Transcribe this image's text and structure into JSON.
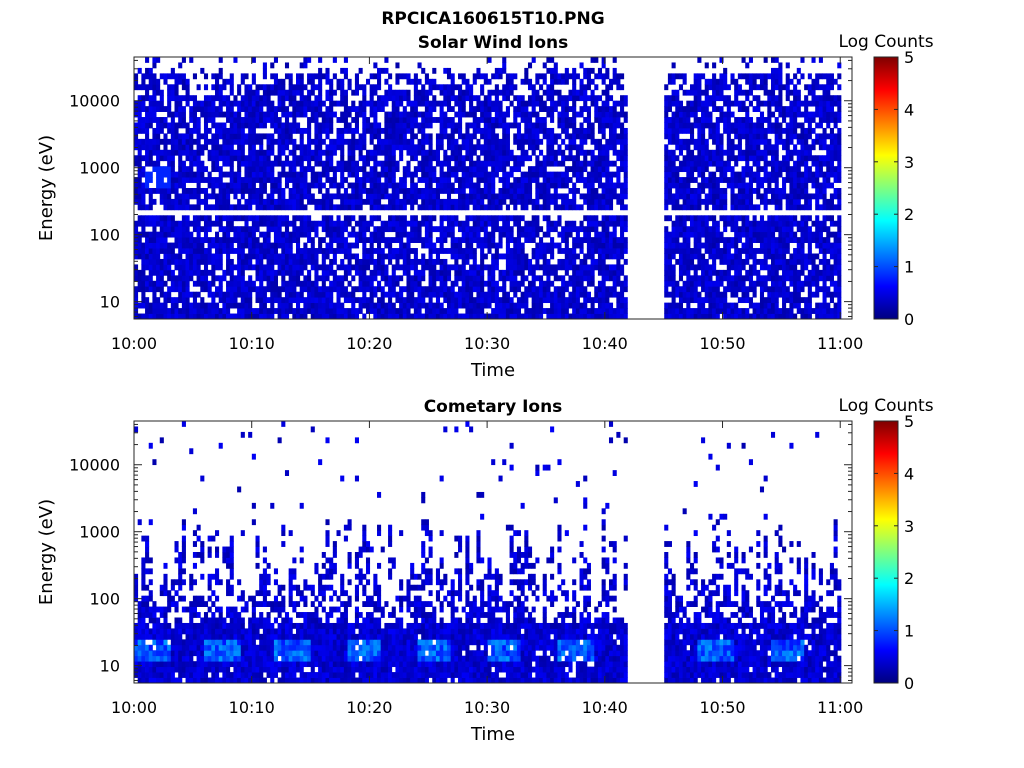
{
  "figure": {
    "title": "RPCICA160615T10.PNG"
  },
  "colorbar_stops": [
    "#00007f",
    "#0000ff",
    "#007fff",
    "#00ffff",
    "#7fff7f",
    "#ffff00",
    "#ff7f00",
    "#ff0000",
    "#7f0000"
  ],
  "chart_data": [
    {
      "type": "heatmap",
      "title": "Solar Wind Ions",
      "xlabel": "Time",
      "ylabel": "Energy (eV)",
      "y_scale": "log",
      "xlim": [
        "10:00",
        "11:01"
      ],
      "ylim": [
        5.5,
        45000
      ],
      "xticks": [
        "10:00",
        "10:10",
        "10:20",
        "10:30",
        "10:40",
        "10:50",
        "11:00"
      ],
      "yticks": [
        10,
        100,
        1000,
        10000
      ],
      "ytick_labels": [
        "10",
        "100",
        "1000",
        "10000"
      ],
      "colorbar": {
        "label": "Log Counts",
        "range": [
          0,
          5
        ],
        "ticks": [
          "0",
          "1",
          "2",
          "3",
          "4",
          "5"
        ]
      },
      "data_gap": [
        "10:42",
        "10:45"
      ],
      "dominant_value_range": [
        0.2,
        0.8
      ],
      "peak_region": {
        "time": "10:02",
        "energy_ev": 700,
        "log_counts": 0.8
      }
    },
    {
      "type": "heatmap",
      "title": "Cometary Ions",
      "xlabel": "Time",
      "ylabel": "Energy (eV)",
      "y_scale": "log",
      "xlim": [
        "10:00",
        "11:01"
      ],
      "ylim": [
        5.5,
        45000
      ],
      "xticks": [
        "10:00",
        "10:10",
        "10:20",
        "10:30",
        "10:40",
        "10:50",
        "11:00"
      ],
      "yticks": [
        10,
        100,
        1000,
        10000
      ],
      "ytick_labels": [
        "10",
        "100",
        "1000",
        "10000"
      ],
      "colorbar": {
        "label": "Log Counts",
        "range": [
          0,
          5
        ],
        "ticks": [
          "0",
          "1",
          "2",
          "3",
          "4",
          "5"
        ]
      },
      "data_gap": [
        "10:42",
        "10:45"
      ],
      "dominant_value_range": [
        0.2,
        1.3
      ],
      "bright_band_energy_ev": [
        12,
        25
      ],
      "bright_band_log_counts": 1.4
    }
  ]
}
